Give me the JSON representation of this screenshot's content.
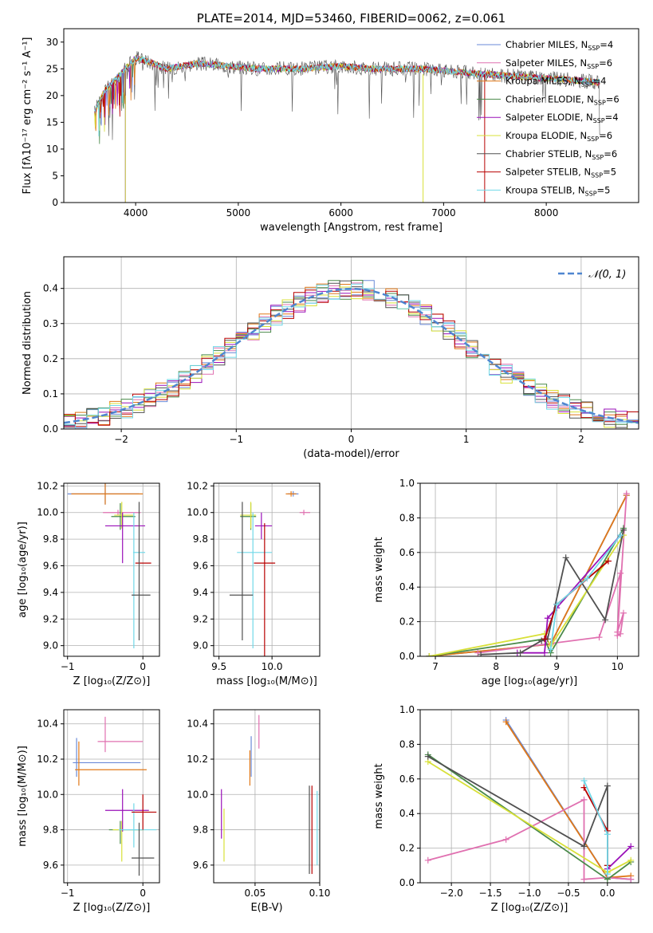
{
  "colors": {
    "Chabrier MILES": "#6a8ad8",
    "Salpeter MILES": "#e070b0",
    "Kroupa MILES": "#e07818",
    "Chabrier ELODIE": "#4a8a4a",
    "Salpeter ELODIE": "#9a10b8",
    "Kroupa ELODIE": "#d8e038",
    "Chabrier STELIB": "#505050",
    "Salpeter STELIB": "#b80000",
    "Kroupa STELIB": "#70d8e8",
    "gauss": "#4f86d0",
    "grid": "#b0b0b0"
  },
  "chart_data": [
    {
      "id": "spectrum",
      "type": "line",
      "title": "PLATE=2014, MJD=53460, FIBERID=0062, z=0.061",
      "xlabel": "wavelength [Angstrom, rest frame]",
      "ylabel": "Flux [fλ10⁻¹⁷ erg cm⁻² s⁻¹ A⁻¹]",
      "xlim": [
        3300,
        8900
      ],
      "ylim": [
        0,
        32.5
      ],
      "xticks": [
        4000,
        5000,
        6000,
        7000,
        8000
      ],
      "yticks": [
        0,
        5,
        10,
        15,
        20,
        25,
        30
      ],
      "grid": false,
      "legend": "top-right",
      "series": [
        {
          "name": "Chabrier MILES, N_SSP=4",
          "label": "Chabrier MILES, N",
          "sub": "SSP",
          "n": "=4"
        },
        {
          "name": "Salpeter MILES, N_SSP=6",
          "label": "Salpeter MILES, N",
          "sub": "SSP",
          "n": "=6"
        },
        {
          "name": "Kroupa MILES, N_SSP=4",
          "label": "Kroupa MILES, N",
          "sub": "SSP",
          "n": "=4"
        },
        {
          "name": "Chabrier ELODIE, N_SSP=6",
          "label": "Chabrier ELODIE, N",
          "sub": "SSP",
          "n": "=6"
        },
        {
          "name": "Salpeter ELODIE, N_SSP=4",
          "label": "Salpeter ELODIE, N",
          "sub": "SSP",
          "n": "=4"
        },
        {
          "name": "Kroupa ELODIE, N_SSP=6",
          "label": "Kroupa ELODIE, N",
          "sub": "SSP",
          "n": "=6"
        },
        {
          "name": "Chabrier STELIB, N_SSP=6",
          "label": "Chabrier STELIB, N",
          "sub": "SSP",
          "n": "=6"
        },
        {
          "name": "Salpeter STELIB, N_SSP=5",
          "label": "Salpeter STELIB, N",
          "sub": "SSP",
          "n": "=5"
        },
        {
          "name": "Kroupa STELIB, N_SSP=5",
          "label": "Kroupa STELIB, N",
          "sub": "SSP",
          "n": "=5"
        }
      ],
      "continuum": [
        [
          3600,
          17
        ],
        [
          3700,
          21
        ],
        [
          3800,
          23
        ],
        [
          3900,
          25
        ],
        [
          4000,
          27
        ],
        [
          4100,
          26.5
        ],
        [
          4300,
          25
        ],
        [
          4600,
          26
        ],
        [
          4900,
          25.5
        ],
        [
          5200,
          25
        ],
        [
          5600,
          25
        ],
        [
          6000,
          25.5
        ],
        [
          6300,
          25
        ],
        [
          6800,
          25
        ],
        [
          7100,
          24.5
        ],
        [
          7400,
          24
        ],
        [
          7800,
          23.5
        ],
        [
          8200,
          23
        ],
        [
          8500,
          22.5
        ]
      ]
    },
    {
      "id": "residuals",
      "type": "histogram",
      "xlabel": "(data-model)/error",
      "ylabel": "Normed distribution",
      "xlim": [
        -2.5,
        2.5
      ],
      "ylim": [
        0,
        0.49
      ],
      "xticks": [
        -2,
        -1,
        0,
        1,
        2
      ],
      "yticks": [
        0.0,
        0.1,
        0.2,
        0.3,
        0.4
      ],
      "grid": true,
      "legend": "top-right",
      "bin_width": 0.1,
      "gauss_label": "𝒩(0, 1)"
    },
    {
      "id": "age-vs-Z",
      "type": "scatter",
      "xlabel": "Z [log₁₀(Z/Z⊙)]",
      "ylabel": "age  [log₁₀(age/yr)]",
      "xlim": [
        -1.05,
        0.22
      ],
      "ylim": [
        8.92,
        10.22
      ],
      "xticks": [
        -1,
        0
      ],
      "yticks": [
        9.0,
        9.2,
        9.4,
        9.6,
        9.8,
        10.0,
        10.2
      ],
      "grid": true,
      "errorbars": [
        {
          "series": "Chabrier MILES",
          "x": -0.5,
          "xerr": [
            0.5,
            0.45
          ],
          "y": 10.14,
          "yerr": [
            0.08,
            0.08
          ]
        },
        {
          "series": "Kroupa MILES",
          "x": -0.5,
          "xerr": [
            0.45,
            0.5
          ],
          "y": 10.14,
          "yerr": [
            0.08,
            0.08
          ]
        },
        {
          "series": "Salpeter MILES",
          "x": -0.33,
          "xerr": [
            0.2,
            0.3
          ],
          "y": 10.0,
          "yerr": [
            0.02,
            0.02
          ]
        },
        {
          "series": "Chabrier ELODIE",
          "x": -0.3,
          "xerr": [
            0.12,
            0.2
          ],
          "y": 9.97,
          "yerr": [
            0.1,
            0.1
          ]
        },
        {
          "series": "Kroupa ELODIE",
          "x": -0.28,
          "xerr": [
            0.1,
            0.15
          ],
          "y": 9.98,
          "yerr": [
            0.1,
            0.1
          ]
        },
        {
          "series": "Salpeter ELODIE",
          "x": -0.27,
          "xerr": [
            0.23,
            0.3
          ],
          "y": 9.9,
          "yerr": [
            0.28,
            0.1
          ]
        },
        {
          "series": "Kroupa STELIB",
          "x": -0.12,
          "xerr": [
            0.01,
            0.15
          ],
          "y": 9.7,
          "yerr": [
            0.72,
            0.3
          ]
        },
        {
          "series": "Salpeter STELIB",
          "x": -0.04,
          "xerr": [
            0.06,
            0.15
          ],
          "y": 9.62,
          "yerr": [
            0.0,
            0.0
          ]
        },
        {
          "series": "Chabrier STELIB",
          "x": -0.05,
          "xerr": [
            0.1,
            0.15
          ],
          "y": 9.38,
          "yerr": [
            0.34,
            0.7
          ]
        }
      ]
    },
    {
      "id": "age-vs-mass",
      "type": "scatter",
      "xlabel": "mass [log₁₀(M/M⊙)]",
      "ylabel": "",
      "xlim": [
        9.45,
        10.45
      ],
      "ylim": [
        8.92,
        10.22
      ],
      "xticks": [
        9.5,
        10.0
      ],
      "yticks": [
        9.0,
        9.2,
        9.4,
        9.6,
        9.8,
        10.0,
        10.2
      ],
      "grid": true,
      "errorbars": [
        {
          "series": "Chabrier MILES",
          "x": 10.2,
          "xerr": [
            0.05,
            0.05
          ],
          "y": 10.14,
          "yerr": [
            0.02,
            0.02
          ]
        },
        {
          "series": "Kroupa MILES",
          "x": 10.18,
          "xerr": [
            0.05,
            0.05
          ],
          "y": 10.14,
          "yerr": [
            0.02,
            0.02
          ]
        },
        {
          "series": "Salpeter MILES",
          "x": 10.3,
          "xerr": [
            0.04,
            0.06
          ],
          "y": 10.0,
          "yerr": [
            0.02,
            0.02
          ]
        },
        {
          "series": "Chabrier ELODIE",
          "x": 9.8,
          "xerr": [
            0.1,
            0.05
          ],
          "y": 9.97,
          "yerr": [
            0.1,
            0.1
          ]
        },
        {
          "series": "Kroupa ELODIE",
          "x": 9.8,
          "xerr": [
            0.1,
            0.05
          ],
          "y": 9.98,
          "yerr": [
            0.1,
            0.1
          ]
        },
        {
          "series": "Salpeter ELODIE",
          "x": 9.9,
          "xerr": [
            0.06,
            0.1
          ],
          "y": 9.9,
          "yerr": [
            0.1,
            0.1
          ]
        },
        {
          "series": "Kroupa STELIB",
          "x": 9.82,
          "xerr": [
            0.15,
            0.18
          ],
          "y": 9.7,
          "yerr": [
            0.72,
            0.3
          ]
        },
        {
          "series": "Salpeter STELIB",
          "x": 9.93,
          "xerr": [
            0.1,
            0.1
          ],
          "y": 9.62,
          "yerr": [
            0.7,
            0.3
          ]
        },
        {
          "series": "Chabrier STELIB",
          "x": 9.72,
          "xerr": [
            0.12,
            0.1
          ],
          "y": 9.38,
          "yerr": [
            0.34,
            0.7
          ]
        }
      ]
    },
    {
      "id": "weight-vs-age",
      "type": "line",
      "xlabel": "age  [log₁₀(age/yr)]",
      "ylabel": "mass weight",
      "xlim": [
        6.75,
        10.35
      ],
      "ylim": [
        0,
        1.0
      ],
      "xticks": [
        7,
        8,
        9,
        10
      ],
      "yticks": [
        0.0,
        0.2,
        0.4,
        0.6,
        0.8,
        1.0
      ],
      "grid": true,
      "series": [
        {
          "name": "Chabrier MILES",
          "x": [
            6.9,
            8.9,
            10.15
          ],
          "y": [
            0.0,
            0.07,
            0.93
          ]
        },
        {
          "name": "Kroupa MILES",
          "x": [
            6.9,
            8.9,
            10.15
          ],
          "y": [
            0.0,
            0.07,
            0.93
          ]
        },
        {
          "name": "Salpeter MILES",
          "x": [
            7.7,
            9.7,
            10.05,
            10.0,
            10.1,
            10.05,
            10.0,
            10.15
          ],
          "y": [
            0.02,
            0.11,
            0.48,
            0.14,
            0.25,
            0.13,
            0.12,
            0.94
          ]
        },
        {
          "name": "Chabrier ELODIE",
          "x": [
            6.9,
            8.8,
            8.9,
            10.1
          ],
          "y": [
            0.0,
            0.1,
            0.02,
            0.74
          ]
        },
        {
          "name": "Kroupa ELODIE",
          "x": [
            6.9,
            8.8,
            8.9,
            10.1
          ],
          "y": [
            0.0,
            0.13,
            0.06,
            0.7
          ]
        },
        {
          "name": "Salpeter ELODIE",
          "x": [
            8.35,
            8.8,
            8.85,
            9.0,
            10.05
          ],
          "y": [
            0.02,
            0.02,
            0.22,
            0.28,
            0.7
          ]
        },
        {
          "name": "Chabrier STELIB",
          "x": [
            7.75,
            8.4,
            8.75,
            8.85,
            9.15,
            9.8,
            10.1
          ],
          "y": [
            0.01,
            0.02,
            0.09,
            0.1,
            0.57,
            0.21,
            0.73
          ]
        },
        {
          "name": "Salpeter STELIB",
          "x": [
            8.8,
            9.0,
            9.85
          ],
          "y": [
            0.1,
            0.3,
            0.55
          ]
        },
        {
          "name": "Kroupa STELIB",
          "x": [
            8.9,
            9.0,
            9.5,
            10.05
          ],
          "y": [
            0.04,
            0.3,
            0.45,
            0.7
          ]
        }
      ]
    },
    {
      "id": "mass-vs-Z",
      "type": "scatter",
      "xlabel": "Z [log₁₀(Z/Z⊙)]",
      "ylabel": "mass [log₁₀(M/M⊙)]",
      "xlim": [
        -1.05,
        0.22
      ],
      "ylim": [
        9.5,
        10.48
      ],
      "xticks": [
        -1,
        0
      ],
      "yticks": [
        9.6,
        9.8,
        10.0,
        10.2,
        10.4
      ],
      "grid": true,
      "errorbars": [
        {
          "series": "Chabrier MILES",
          "x": -0.88,
          "xerr": [
            0.05,
            0.85
          ],
          "y": 10.18,
          "yerr": [
            0.08,
            0.14
          ]
        },
        {
          "series": "Kroupa MILES",
          "x": -0.85,
          "xerr": [
            0.05,
            0.9
          ],
          "y": 10.14,
          "yerr": [
            0.09,
            0.16
          ]
        },
        {
          "series": "Salpeter MILES",
          "x": -0.5,
          "xerr": [
            0.1,
            0.5
          ],
          "y": 10.3,
          "yerr": [
            0.06,
            0.14
          ]
        },
        {
          "series": "Chabrier ELODIE",
          "x": -0.3,
          "xerr": [
            0.15,
            0.3
          ],
          "y": 9.8,
          "yerr": [
            0.08,
            0.05
          ]
        },
        {
          "series": "Kroupa ELODIE",
          "x": -0.28,
          "xerr": [
            0.12,
            0.3
          ],
          "y": 9.8,
          "yerr": [
            0.18,
            0.05
          ]
        },
        {
          "series": "Salpeter ELODIE",
          "x": -0.27,
          "xerr": [
            0.23,
            0.35
          ],
          "y": 9.91,
          "yerr": [
            0.12,
            0.12
          ]
        },
        {
          "series": "Kroupa STELIB",
          "x": -0.12,
          "xerr": [
            0.2,
            0.3
          ],
          "y": 9.8,
          "yerr": [
            0.1,
            0.15
          ]
        },
        {
          "series": "Salpeter STELIB",
          "x": 0.0,
          "xerr": [
            0.15,
            0.18
          ],
          "y": 9.9,
          "yerr": [
            0.1,
            0.1
          ]
        },
        {
          "series": "Chabrier STELIB",
          "x": -0.05,
          "xerr": [
            0.1,
            0.2
          ],
          "y": 9.64,
          "yerr": [
            0.1,
            0.2
          ]
        }
      ]
    },
    {
      "id": "mass-vs-ebv",
      "type": "scatter",
      "xlabel": "E(B-V)",
      "ylabel": "",
      "xlim": [
        0.018,
        0.1
      ],
      "ylim": [
        9.5,
        10.48
      ],
      "xticks": [
        0.05,
        0.1
      ],
      "yticks": [
        9.6,
        9.8,
        10.0,
        10.2,
        10.4
      ],
      "grid": true,
      "errorbars": [
        {
          "series": "Salpeter ELODIE",
          "x": 0.024,
          "yrange": [
            9.75,
            10.03
          ]
        },
        {
          "series": "Kroupa ELODIE",
          "x": 0.026,
          "yrange": [
            9.62,
            9.92
          ]
        },
        {
          "series": "Chabrier MILES",
          "x": 0.047,
          "yrange": [
            10.1,
            10.33
          ]
        },
        {
          "series": "Kroupa MILES",
          "x": 0.046,
          "yrange": [
            10.05,
            10.25
          ]
        },
        {
          "series": "Salpeter MILES",
          "x": 0.053,
          "yrange": [
            10.26,
            10.45
          ]
        },
        {
          "series": "Salpeter STELIB",
          "x": 0.094,
          "yrange": [
            9.55,
            10.05
          ]
        },
        {
          "series": "Chabrier STELIB",
          "x": 0.092,
          "yrange": [
            9.55,
            10.05
          ]
        },
        {
          "series": "Kroupa STELIB",
          "x": 0.098,
          "yrange": [
            9.6,
            10.02
          ]
        }
      ]
    },
    {
      "id": "weight-vs-Z",
      "type": "line",
      "xlabel": "Z [log₁₀(Z/Z⊙)]",
      "ylabel": "mass weight",
      "xlim": [
        -2.4,
        0.4
      ],
      "ylim": [
        0,
        1.0
      ],
      "xticks": [
        -2.0,
        -1.5,
        -1.0,
        -0.5,
        0.0
      ],
      "yticks": [
        0.0,
        0.2,
        0.4,
        0.6,
        0.8,
        1.0
      ],
      "grid": true,
      "series": [
        {
          "name": "Chabrier MILES",
          "x": [
            -1.3,
            0.0,
            0.3
          ],
          "y": [
            0.94,
            0.03,
            0.02
          ]
        },
        {
          "name": "Kroupa MILES",
          "x": [
            -1.3,
            0.0,
            0.3
          ],
          "y": [
            0.93,
            0.03,
            0.04
          ]
        },
        {
          "name": "Salpeter MILES",
          "x": [
            -2.3,
            -1.3,
            -0.3,
            -0.3,
            0.0,
            0.3
          ],
          "y": [
            0.13,
            0.25,
            0.48,
            0.02,
            0.03,
            0.02
          ]
        },
        {
          "name": "Chabrier ELODIE",
          "x": [
            -2.3,
            0.0,
            0.3
          ],
          "y": [
            0.74,
            0.02,
            0.12
          ]
        },
        {
          "name": "Kroupa ELODIE",
          "x": [
            -2.3,
            0.0,
            0.3
          ],
          "y": [
            0.7,
            0.06,
            0.13
          ]
        },
        {
          "name": "Salpeter ELODIE",
          "x": [
            0.0,
            0.3
          ],
          "y": [
            0.08,
            0.21
          ]
        },
        {
          "name": "Chabrier STELIB",
          "x": [
            -2.3,
            -0.3,
            0.0,
            0.0
          ],
          "y": [
            0.73,
            0.21,
            0.56,
            0.1
          ]
        },
        {
          "name": "Salpeter STELIB",
          "x": [
            -0.3,
            0.0,
            0.0
          ],
          "y": [
            0.55,
            0.3,
            0.1
          ]
        },
        {
          "name": "Kroupa STELIB",
          "x": [
            -0.3,
            0.0,
            0.0
          ],
          "y": [
            0.59,
            0.28,
            0.05
          ]
        }
      ]
    }
  ]
}
